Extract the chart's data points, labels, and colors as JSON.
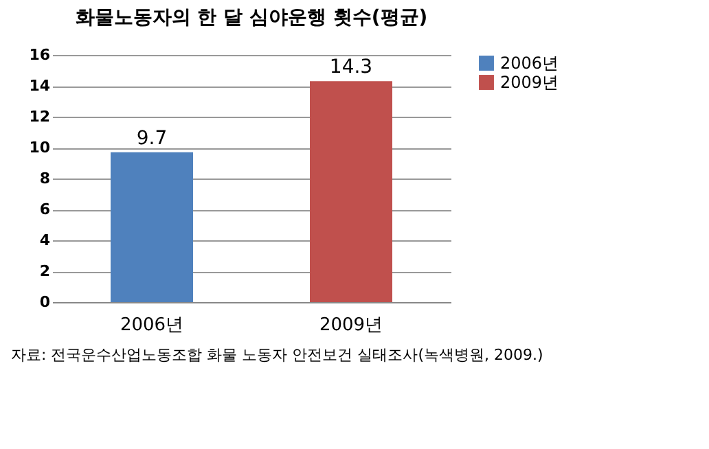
{
  "chart_data": {
    "type": "bar",
    "title": "화물노동자의 한 달 심야운행 횟수(평균)",
    "categories": [
      "2006년",
      "2009년"
    ],
    "series": [
      {
        "name": "2006년",
        "color": "#4f81bd",
        "values": [
          9.7,
          null
        ]
      },
      {
        "name": "2009년",
        "color": "#c0504d",
        "values": [
          null,
          14.3
        ]
      }
    ],
    "stacked": true,
    "ylim": [
      0,
      16
    ],
    "yticks": [
      0,
      2,
      4,
      6,
      8,
      10,
      12,
      14,
      16
    ],
    "grid": "y",
    "legend": "right",
    "data_labels": true,
    "annotations": [
      "자료: 전국운수산업노동조합 화물 노동자 안전보건 실태조사(녹색병원, 2009.)"
    ]
  }
}
